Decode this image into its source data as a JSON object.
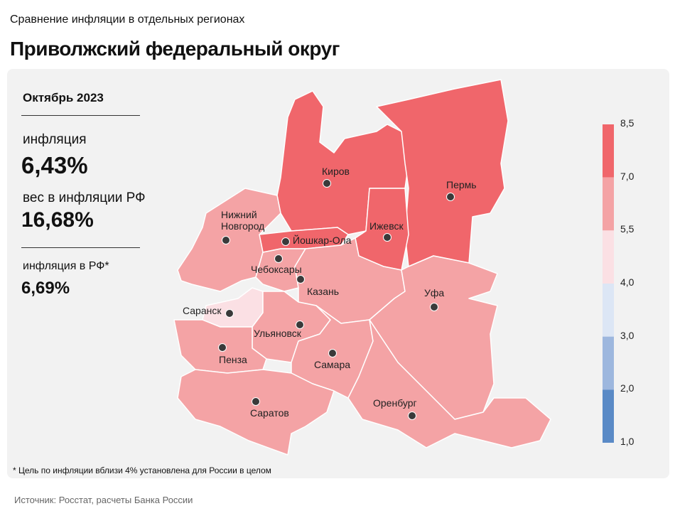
{
  "header": {
    "subtitle": "Сравнение инфляции  в отдельных регионах",
    "title": "Приволжский федеральный округ"
  },
  "panel": {
    "period": "Октябрь 2023",
    "inflation_label": "инфляция",
    "inflation_value": "6,43%",
    "weight_label": "вес в инфляции  РФ",
    "weight_value": "16,68%",
    "rf_label": "инфляция  в РФ*",
    "rf_value": "6,69%"
  },
  "map": {
    "cities": [
      "Киров",
      "Пермь",
      "Ижевск",
      "Йошкар-Ола",
      "Нижний Новгород",
      "Чебоксары",
      "Казань",
      "Уфа",
      "Саранск",
      "Ульяновск",
      "Пенза",
      "Самара",
      "Саратов",
      "Оренбург"
    ]
  },
  "legend": {
    "ticks": [
      "8,5",
      "7,0",
      "5,5",
      "4,0",
      "3,0",
      "2,0",
      "1,0"
    ],
    "colors": [
      "#f0666b",
      "#f4a3a5",
      "#fbe0e4",
      "#dce6f5",
      "#9db7de",
      "#5a8ac6"
    ]
  },
  "footnote": "* Цель по инфляции  вблизи 4% установлена для России в целом",
  "source": "Источник: Росстат, расчеты Банка России"
}
